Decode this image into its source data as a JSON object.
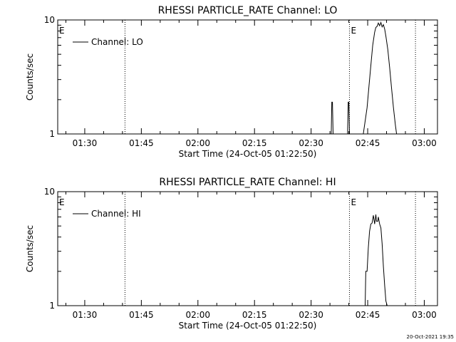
{
  "charts": {
    "footer_timestamp": "20-Oct-2021 19:35",
    "chart_data": [
      {
        "type": "line",
        "title": "RHESSI PARTICLE_RATE Channel: LO",
        "xlabel": "Start Time (24-Oct-05 01:22:50)",
        "ylabel": "Counts/sec",
        "yscale": "log",
        "ylim": [
          1,
          10
        ],
        "y_tick_labels": [
          "1",
          "10"
        ],
        "x_range": [
          "01:22:50",
          "03:03:30"
        ],
        "x_tick_labels": [
          "01:30",
          "01:45",
          "02:00",
          "02:15",
          "02:30",
          "02:45",
          "03:00"
        ],
        "legend": "Channel: LO",
        "legend_placement": "top-left",
        "markers": [
          {
            "label": "E",
            "time": "01:22:50",
            "dotted": false
          },
          {
            "label": "",
            "time": "01:40:40",
            "dotted": true
          },
          {
            "label": "E",
            "time": "02:40:10",
            "dotted": true
          },
          {
            "label": "",
            "time": "02:57:40",
            "dotted": true
          }
        ],
        "series": [
          {
            "x": [
              "02:35:20",
              "02:35:30",
              "02:35:40",
              "02:35:50",
              "02:39:40",
              "02:39:50",
              "02:40:00",
              "02:40:10",
              "02:43:50",
              "02:44:50",
              "02:45:20",
              "02:45:50",
              "02:46:20",
              "02:46:50",
              "02:47:10",
              "02:47:30",
              "02:47:50",
              "02:48:10",
              "02:48:30",
              "02:48:50",
              "02:49:10",
              "02:49:30",
              "02:49:50",
              "02:50:20",
              "02:50:50",
              "02:51:20",
              "02:51:50",
              "02:52:20",
              "02:52:40"
            ],
            "y": [
              1,
              1.9,
              1.9,
              1,
              1,
              1.9,
              1.9,
              1,
              1,
              1.7,
              2.6,
              4,
              6,
              7.8,
              8.6,
              8.8,
              9.4,
              8.9,
              9.5,
              8.7,
              9.1,
              8.3,
              7.2,
              5.5,
              3.8,
              2.5,
              1.7,
              1.2,
              1
            ]
          }
        ]
      },
      {
        "type": "line",
        "title": "RHESSI PARTICLE_RATE Channel: HI",
        "xlabel": "Start Time (24-Oct-05 01:22:50)",
        "ylabel": "Counts/sec",
        "yscale": "log",
        "ylim": [
          1,
          10
        ],
        "y_tick_labels": [
          "1",
          "10"
        ],
        "x_range": [
          "01:22:50",
          "03:03:30"
        ],
        "x_tick_labels": [
          "01:30",
          "01:45",
          "02:00",
          "02:15",
          "02:30",
          "02:45",
          "03:00"
        ],
        "legend": "Channel: HI",
        "legend_placement": "top-left",
        "markers": [
          {
            "label": "E",
            "time": "01:22:50",
            "dotted": false
          },
          {
            "label": "",
            "time": "01:40:40",
            "dotted": true
          },
          {
            "label": "E",
            "time": "02:40:10",
            "dotted": true
          },
          {
            "label": "",
            "time": "02:57:40",
            "dotted": true
          }
        ],
        "series": [
          {
            "x": [
              "02:44:20",
              "02:44:30",
              "02:44:50",
              "02:45:10",
              "02:45:30",
              "02:45:50",
              "02:46:10",
              "02:46:30",
              "02:46:50",
              "02:47:10",
              "02:47:20",
              "02:47:40",
              "02:47:50",
              "02:48:10",
              "02:48:30",
              "02:48:50",
              "02:49:10",
              "02:49:30",
              "02:49:50",
              "02:50:10"
            ],
            "y": [
              1,
              2,
              2,
              3.2,
              4.5,
              5.2,
              5.3,
              6.2,
              5.2,
              6.3,
              5.5,
              5.5,
              6,
              5.2,
              4.8,
              3.5,
              2.2,
              1.5,
              1.1,
              1
            ]
          }
        ]
      }
    ]
  }
}
